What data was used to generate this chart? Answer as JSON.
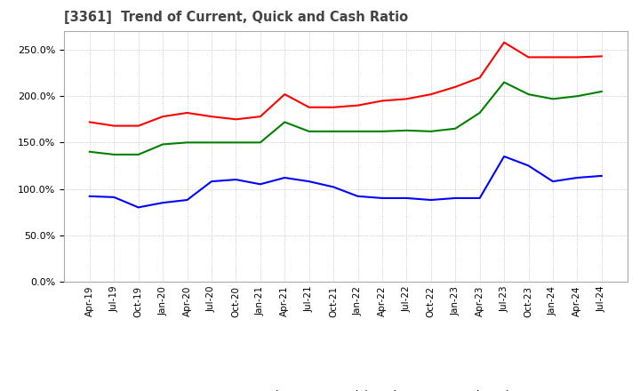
{
  "title": "[3361]  Trend of Current, Quick and Cash Ratio",
  "x_labels": [
    "Apr-19",
    "Jul-19",
    "Oct-19",
    "Jan-20",
    "Apr-20",
    "Jul-20",
    "Oct-20",
    "Jan-21",
    "Apr-21",
    "Jul-21",
    "Oct-21",
    "Jan-22",
    "Apr-22",
    "Jul-22",
    "Oct-22",
    "Jan-23",
    "Apr-23",
    "Jul-23",
    "Oct-23",
    "Jan-24",
    "Apr-24",
    "Jul-24"
  ],
  "current_ratio": [
    1.72,
    1.68,
    1.68,
    1.78,
    1.82,
    1.78,
    1.75,
    1.78,
    2.02,
    1.88,
    1.88,
    1.9,
    1.95,
    1.97,
    2.02,
    2.1,
    2.2,
    2.58,
    2.42,
    2.42,
    2.42,
    2.43
  ],
  "quick_ratio": [
    1.4,
    1.37,
    1.37,
    1.48,
    1.5,
    1.5,
    1.5,
    1.5,
    1.72,
    1.62,
    1.62,
    1.62,
    1.62,
    1.63,
    1.62,
    1.65,
    1.82,
    2.15,
    2.02,
    1.97,
    2.0,
    2.05
  ],
  "cash_ratio": [
    0.92,
    0.91,
    0.8,
    0.85,
    0.88,
    1.08,
    1.1,
    1.05,
    1.12,
    1.08,
    1.02,
    0.92,
    0.9,
    0.9,
    0.88,
    0.9,
    0.9,
    1.35,
    1.25,
    1.08,
    1.12,
    1.14
  ],
  "current_color": "#FF0000",
  "quick_color": "#008000",
  "cash_color": "#0000FF",
  "ylim": [
    0.0,
    2.7
  ],
  "yticks": [
    0.0,
    0.5,
    1.0,
    1.5,
    2.0,
    2.5
  ],
  "background_color": "#ffffff",
  "grid_color": "#aaaaaa"
}
